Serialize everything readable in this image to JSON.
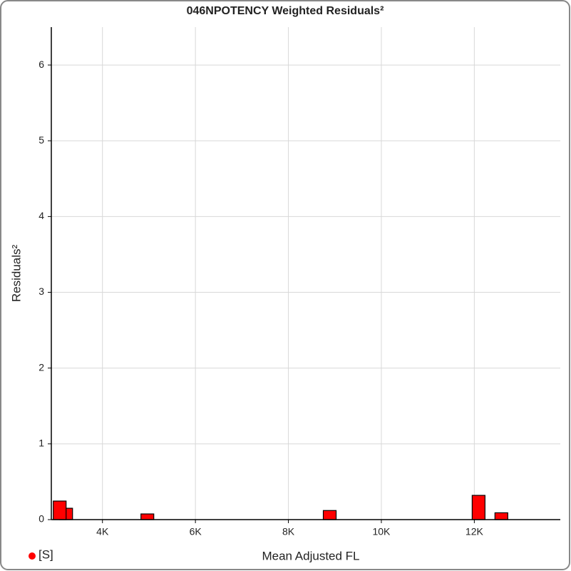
{
  "chart_data": {
    "type": "bar",
    "title": "046NPOTENCY Weighted Residuals²",
    "x_label": "Mean Adjusted FL",
    "y_label": "Residuals²",
    "x": [
      3080,
      3218,
      4966,
      8889,
      12092,
      12582
    ],
    "values": [
      0.245,
      0.15,
      0.075,
      0.12,
      0.32,
      0.09
    ],
    "color": "#ff0000",
    "xlim": [
      2900,
      13850
    ],
    "xticks": [
      {
        "value": 4000,
        "label": "4K"
      },
      {
        "value": 6000,
        "label": "6K"
      },
      {
        "value": 8000,
        "label": "8K"
      },
      {
        "value": 10000,
        "label": "10K"
      },
      {
        "value": 12000,
        "label": "12K"
      }
    ],
    "ylim": [
      0,
      6.5
    ],
    "yticks": [
      0,
      1,
      2,
      3,
      4,
      5,
      6
    ],
    "grid": true,
    "legend": {
      "name": "[S]",
      "color": "#ff0000",
      "position": "bottom-left"
    }
  }
}
